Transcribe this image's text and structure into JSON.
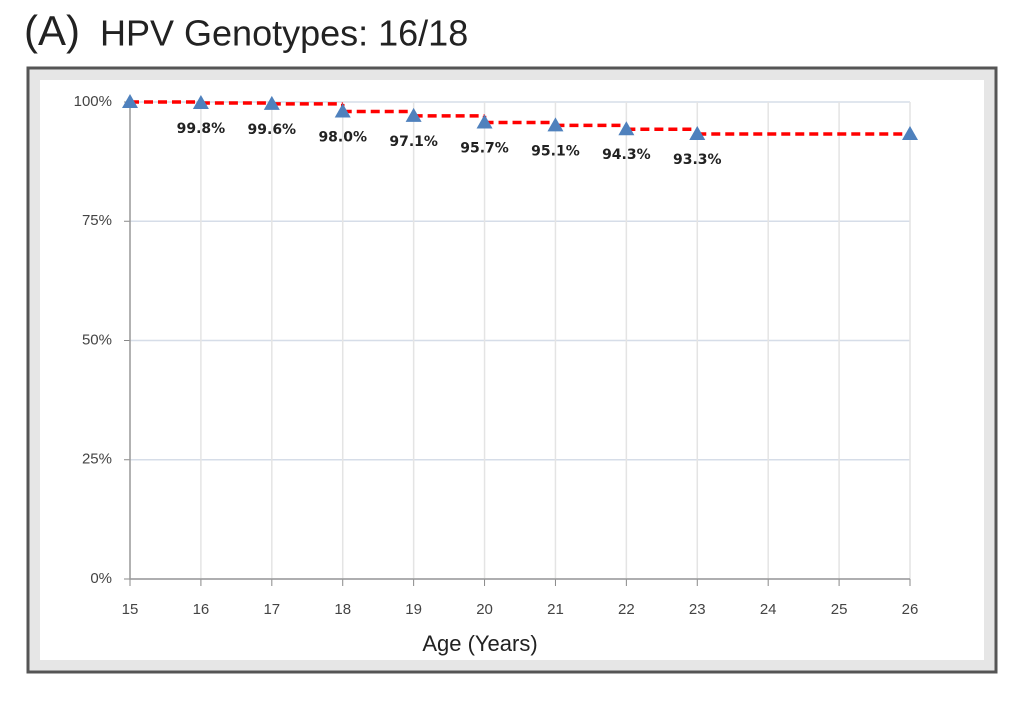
{
  "chart_data": {
    "type": "step",
    "panel_label": "(A)",
    "title": "HPV Genotypes: 16/18",
    "xlabel": "Age (Years)",
    "x": [
      15,
      16,
      17,
      18,
      19,
      20,
      21,
      22,
      23,
      26
    ],
    "values": [
      100,
      99.8,
      99.6,
      98.0,
      97.1,
      95.7,
      95.1,
      94.3,
      93.3,
      93.3
    ],
    "value_labels": [
      null,
      "99.8%",
      "99.6%",
      "98.0%",
      "97.1%",
      "95.7%",
      "95.1%",
      "94.3%",
      "93.3%",
      null
    ],
    "line_color": "#ff0000",
    "marker_color": "#4f81bd",
    "xlim": [
      15,
      26
    ],
    "xticks": [
      15,
      16,
      17,
      18,
      19,
      20,
      21,
      22,
      23,
      24,
      25,
      26
    ],
    "ylim": [
      0,
      100
    ],
    "yticks": [
      {
        "value": 0,
        "label": "0%"
      },
      {
        "value": 25,
        "label": "25%"
      },
      {
        "value": 50,
        "label": "50%"
      },
      {
        "value": 75,
        "label": "75%"
      },
      {
        "value": 100,
        "label": "100%"
      }
    ],
    "grid": true
  }
}
